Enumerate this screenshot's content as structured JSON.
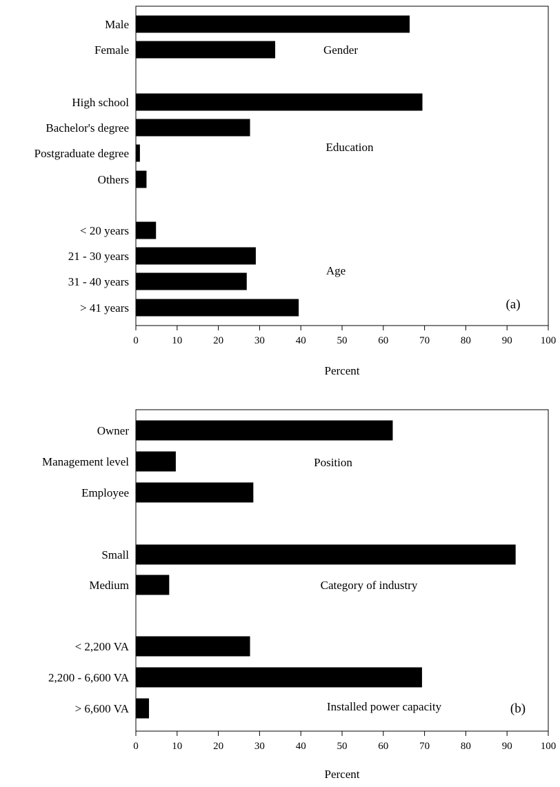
{
  "chart_data": [
    {
      "type": "bar",
      "orientation": "horizontal",
      "panel_label": "(a)",
      "xlabel": "Percent",
      "xlim": [
        0,
        100
      ],
      "xticks": [
        0,
        10,
        20,
        30,
        40,
        50,
        60,
        70,
        80,
        90,
        100
      ],
      "grid": false,
      "bar_color": "#000000",
      "groups": [
        {
          "label": "Gender",
          "categories": [
            "Male",
            "Female"
          ],
          "values": [
            66.3,
            33.7
          ]
        },
        {
          "label": "Education",
          "categories": [
            "High school",
            "Bachelor's degree",
            "Postgraduate degree",
            "Others"
          ],
          "values": [
            69.4,
            27.6,
            0.9,
            2.5
          ]
        },
        {
          "label": "Age",
          "categories": [
            "< 20 years",
            "21 - 30 years",
            "31 - 40 years",
            "> 41 years"
          ],
          "values": [
            4.8,
            29.0,
            26.8,
            39.4
          ]
        }
      ]
    },
    {
      "type": "bar",
      "orientation": "horizontal",
      "panel_label": "(b)",
      "xlabel": "Percent",
      "xlim": [
        0,
        100
      ],
      "xticks": [
        0,
        10,
        20,
        30,
        40,
        50,
        60,
        70,
        80,
        90,
        100
      ],
      "grid": false,
      "bar_color": "#000000",
      "groups": [
        {
          "label": "Position",
          "categories": [
            "Owner",
            "Management level",
            "Employee"
          ],
          "values": [
            62.2,
            9.6,
            28.4
          ]
        },
        {
          "label": "Category of industry",
          "categories": [
            "Small",
            "Medium"
          ],
          "values": [
            92.0,
            8.0
          ]
        },
        {
          "label": "Installed power capacity",
          "categories": [
            "< 2,200 VA",
            "2,200 - 6,600 VA",
            "> 6,600 VA"
          ],
          "values": [
            27.6,
            69.3,
            3.1
          ]
        }
      ]
    }
  ]
}
